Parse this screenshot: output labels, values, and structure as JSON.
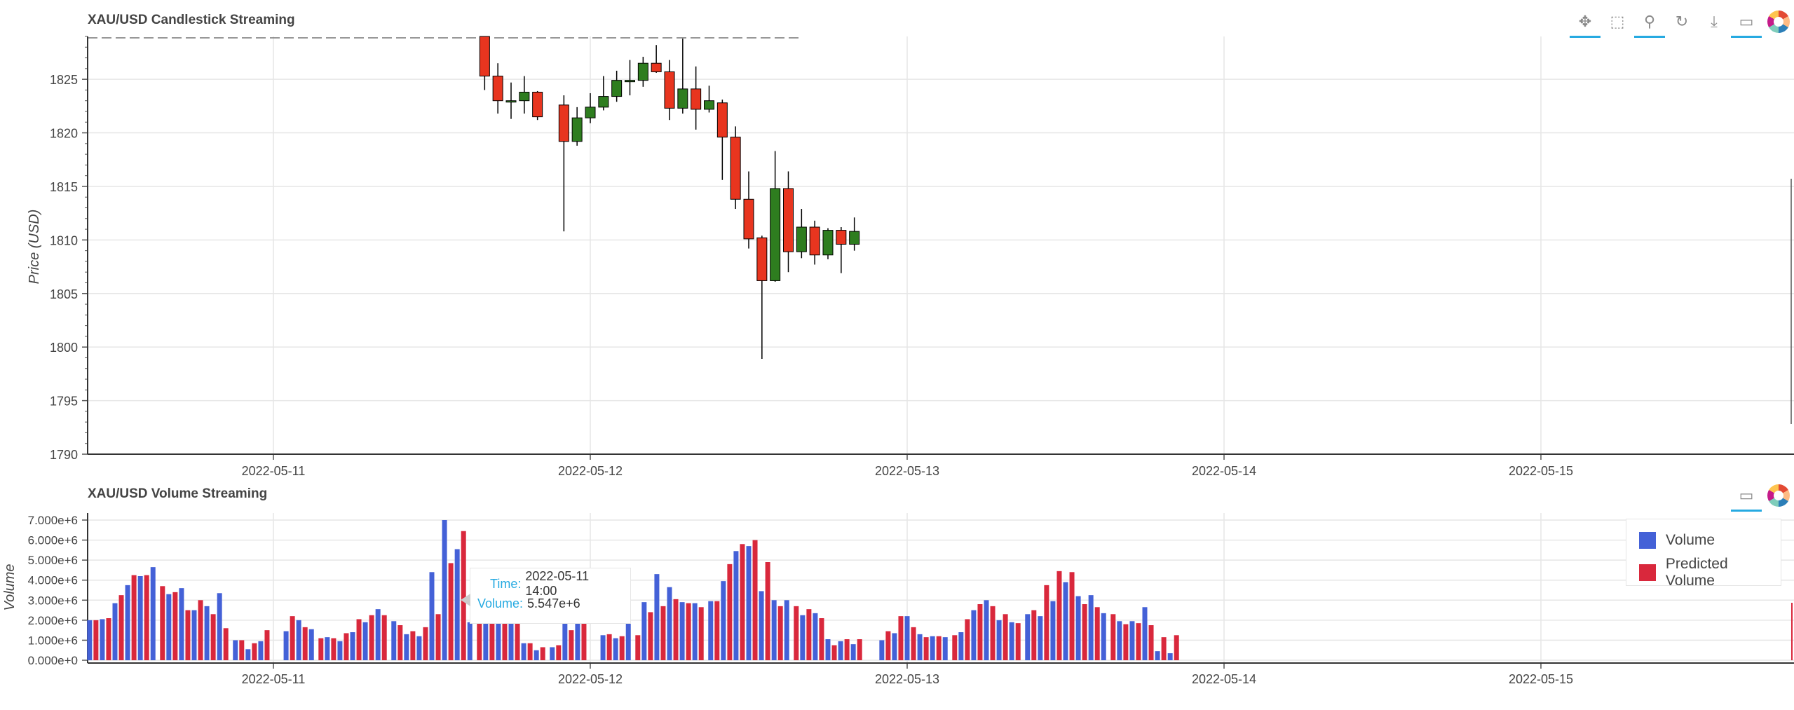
{
  "charts": {
    "price": {
      "title": "XAU/USD Candlestick Streaming",
      "ylabel": "Price (USD)"
    },
    "volume": {
      "title": "XAU/USD Volume Streaming",
      "ylabel": "Volume"
    }
  },
  "toolbar": {
    "price": [
      "pan-icon",
      "box-zoom-icon",
      "wheel-zoom-icon",
      "reset-icon",
      "save-icon",
      "hover-icon",
      "bokeh-logo-icon"
    ],
    "volume": [
      "hover-icon",
      "bokeh-logo-icon"
    ]
  },
  "legend": {
    "volume": "Volume",
    "predicted": "Predicted Volume"
  },
  "tooltip": {
    "time_label": "Time:",
    "time_value": "2022-05-11 14:00",
    "volume_label": "Volume:",
    "volume_value": "5.547e+6"
  },
  "colors": {
    "up": "#2e7d1f",
    "down": "#e8351f",
    "volume": "#4461d7",
    "predicted": "#d9283c",
    "hover_accent": "#26aae1"
  },
  "chart_data": [
    {
      "type": "candlestick",
      "title": "XAU/USD Candlestick Streaming",
      "ylabel": "Price (USD)",
      "ylim": [
        1790,
        1829
      ],
      "yticks": [
        1790,
        1795,
        1800,
        1805,
        1810,
        1815,
        1820,
        1825
      ],
      "xticks": [
        "2022-05-11",
        "2022-05-12",
        "2022-05-13",
        "2022-05-14",
        "2022-05-15"
      ],
      "grid": true,
      "candles": [
        {
          "t": 2022.6667,
          "o": 1829.5,
          "h": 1830.5,
          "l": 1824,
          "c": 1825.3
        },
        {
          "t": 2022.7083,
          "o": 1825.3,
          "h": 1826.5,
          "l": 1821.8,
          "c": 1823
        },
        {
          "t": 2022.75,
          "o": 1823,
          "h": 1824.7,
          "l": 1821.3,
          "c": 1823
        },
        {
          "t": 2022.7917,
          "o": 1823,
          "h": 1825.3,
          "l": 1821.8,
          "c": 1823.8
        },
        {
          "t": 2022.8333,
          "o": 1823.8,
          "h": 1823.9,
          "l": 1821.2,
          "c": 1821.5
        },
        {
          "t": 2022.9167,
          "o": 1822.6,
          "h": 1823.5,
          "l": 1810.8,
          "c": 1819.2
        },
        {
          "t": 2022.9583,
          "o": 1819.2,
          "h": 1822.4,
          "l": 1818.8,
          "c": 1821.4
        },
        {
          "t": 2023.0,
          "o": 1821.4,
          "h": 1823.7,
          "l": 1820.9,
          "c": 1822.4
        },
        {
          "t": 2023.0417,
          "o": 1822.4,
          "h": 1825.3,
          "l": 1822.1,
          "c": 1823.4
        },
        {
          "t": 2023.0833,
          "o": 1823.4,
          "h": 1825.8,
          "l": 1822.9,
          "c": 1824.9
        },
        {
          "t": 2023.125,
          "o": 1824.9,
          "h": 1826.8,
          "l": 1823.5,
          "c": 1824.9
        },
        {
          "t": 2023.1667,
          "o": 1824.9,
          "h": 1827.1,
          "l": 1824.3,
          "c": 1826.5
        },
        {
          "t": 2023.2083,
          "o": 1826.5,
          "h": 1828.2,
          "l": 1825.6,
          "c": 1825.7
        },
        {
          "t": 2023.25,
          "o": 1825.7,
          "h": 1826.8,
          "l": 1821.2,
          "c": 1822.3
        },
        {
          "t": 2023.2917,
          "o": 1822.3,
          "h": 1828.8,
          "l": 1821.8,
          "c": 1824.1
        },
        {
          "t": 2023.3333,
          "o": 1824.1,
          "h": 1826.2,
          "l": 1820.3,
          "c": 1822.2
        },
        {
          "t": 2023.375,
          "o": 1822.2,
          "h": 1824.4,
          "l": 1821.9,
          "c": 1823.0
        },
        {
          "t": 2023.4167,
          "o": 1822.8,
          "h": 1823.1,
          "l": 1815.6,
          "c": 1819.6
        },
        {
          "t": 2023.4583,
          "o": 1819.6,
          "h": 1820.6,
          "l": 1812.9,
          "c": 1813.8
        },
        {
          "t": 2023.5,
          "o": 1813.8,
          "h": 1816.4,
          "l": 1809.2,
          "c": 1810.1
        },
        {
          "t": 2023.5417,
          "o": 1810.2,
          "h": 1810.4,
          "l": 1798.9,
          "c": 1806.2
        },
        {
          "t": 2023.5833,
          "o": 1806.2,
          "h": 1818.3,
          "l": 1806.1,
          "c": 1814.8
        },
        {
          "t": 2023.625,
          "o": 1814.8,
          "h": 1816.4,
          "l": 1807.0,
          "c": 1808.9
        },
        {
          "t": 2023.6667,
          "o": 1808.9,
          "h": 1812.9,
          "l": 1808.3,
          "c": 1811.2
        },
        {
          "t": 2023.7083,
          "o": 1811.2,
          "h": 1811.8,
          "l": 1807.7,
          "c": 1808.6
        },
        {
          "t": 2023.75,
          "o": 1808.6,
          "h": 1811.1,
          "l": 1808.2,
          "c": 1810.9
        },
        {
          "t": 2023.7917,
          "o": 1810.9,
          "h": 1811.2,
          "l": 1806.9,
          "c": 1809.6
        },
        {
          "t": 2023.8333,
          "o": 1809.6,
          "h": 1812.1,
          "l": 1809.0,
          "c": 1810.8
        }
      ]
    },
    {
      "type": "bar",
      "title": "XAU/USD Volume Streaming",
      "ylabel": "Volume",
      "ylim": [
        0,
        7000000
      ],
      "yticks": [
        "0.000e+0",
        "1.000e+6",
        "2.000e+6",
        "3.000e+6",
        "4.000e+6",
        "5.000e+6",
        "6.000e+6",
        "7.000e+6"
      ],
      "xticks": [
        "2022-05-11",
        "2022-05-12",
        "2022-05-13",
        "2022-05-14",
        "2022-05-15"
      ],
      "legend": "top-right",
      "series": [
        {
          "name": "Volume",
          "t": [
            0.42,
            0.46,
            0.5,
            0.54,
            0.58,
            0.62,
            0.67,
            0.71,
            0.75,
            0.79,
            0.83,
            0.88,
            0.92,
            0.96,
            1.04,
            1.08,
            1.12,
            1.17,
            1.21,
            1.25,
            1.29,
            1.33,
            1.38,
            1.42,
            1.46,
            1.5,
            1.54,
            1.58,
            1.62,
            1.67,
            1.71,
            1.75,
            1.79,
            1.83,
            1.88,
            1.92,
            1.96,
            2.04,
            2.08,
            2.12,
            2.17,
            2.21,
            2.25,
            2.29,
            2.33,
            2.38,
            2.42,
            2.46,
            2.5,
            2.54,
            2.58,
            2.62,
            2.67,
            2.71,
            2.75,
            2.79,
            2.83,
            2.92,
            2.96,
            3.0,
            3.04,
            3.08,
            3.12,
            3.17,
            3.21,
            3.25,
            3.29,
            3.33,
            3.38,
            3.42,
            3.46,
            3.5,
            3.54,
            3.58,
            3.62,
            3.67,
            3.71,
            3.75,
            3.79,
            3.83
          ],
          "values": [
            2000000,
            2050000,
            2850000,
            3750000,
            4200000,
            4650000,
            3300000,
            3600000,
            2500000,
            2700000,
            3350000,
            1000000,
            550000,
            950000,
            1450000,
            2000000,
            1550000,
            1150000,
            950000,
            1400000,
            1900000,
            2550000,
            1950000,
            1300000,
            1200000,
            4400000,
            7000000,
            5547000,
            1900000,
            1900000,
            1900000,
            1900000,
            850000,
            500000,
            650000,
            1900000,
            1900000,
            1250000,
            1100000,
            2100000,
            2900000,
            4300000,
            3650000,
            2900000,
            2850000,
            2950000,
            3950000,
            5450000,
            5700000,
            3450000,
            3000000,
            3000000,
            2250000,
            2350000,
            1050000,
            950000,
            800000,
            1000000,
            1350000,
            2200000,
            1300000,
            1200000,
            1150000,
            1400000,
            2500000,
            3000000,
            2000000,
            1900000,
            2300000,
            2200000,
            2950000,
            3900000,
            3200000,
            3250000,
            2350000,
            1950000,
            1950000,
            2650000,
            450000,
            350000
          ]
        },
        {
          "name": "Predicted Volume",
          "t": [
            0.44,
            0.48,
            0.52,
            0.56,
            0.6,
            0.65,
            0.69,
            0.73,
            0.77,
            0.81,
            0.85,
            0.9,
            0.94,
            0.98,
            1.06,
            1.1,
            1.15,
            1.19,
            1.23,
            1.27,
            1.31,
            1.35,
            1.4,
            1.44,
            1.48,
            1.52,
            1.56,
            1.6,
            1.65,
            1.69,
            1.73,
            1.77,
            1.81,
            1.85,
            1.9,
            1.94,
            1.98,
            2.06,
            2.1,
            2.15,
            2.19,
            2.23,
            2.27,
            2.31,
            2.35,
            2.4,
            2.44,
            2.48,
            2.52,
            2.56,
            2.6,
            2.65,
            2.69,
            2.73,
            2.77,
            2.81,
            2.85,
            2.94,
            2.98,
            3.02,
            3.06,
            3.1,
            3.15,
            3.19,
            3.23,
            3.27,
            3.31,
            3.35,
            3.4,
            3.44,
            3.48,
            3.52,
            3.56,
            3.6,
            3.65,
            3.69,
            3.73,
            3.77,
            3.81,
            3.85
          ],
          "values": [
            2000000,
            2100000,
            3250000,
            4250000,
            4250000,
            3700000,
            3400000,
            2500000,
            3000000,
            2300000,
            1600000,
            1000000,
            850000,
            1500000,
            2200000,
            1650000,
            1100000,
            1100000,
            1350000,
            2050000,
            2250000,
            2250000,
            1750000,
            1450000,
            1650000,
            2300000,
            4850000,
            6450000,
            1900000,
            1900000,
            1900000,
            1900000,
            850000,
            650000,
            750000,
            1500000,
            1900000,
            1300000,
            1200000,
            1250000,
            2400000,
            2700000,
            3050000,
            2850000,
            2650000,
            2950000,
            4800000,
            5800000,
            6000000,
            4900000,
            2700000,
            2700000,
            2550000,
            2100000,
            750000,
            1050000,
            1050000,
            1450000,
            2200000,
            1650000,
            1150000,
            1200000,
            1250000,
            2050000,
            2800000,
            2700000,
            2300000,
            1850000,
            2500000,
            3750000,
            4450000,
            4400000,
            2800000,
            2650000,
            2300000,
            1800000,
            1850000,
            1750000,
            1150000,
            1250000
          ]
        }
      ]
    }
  ]
}
